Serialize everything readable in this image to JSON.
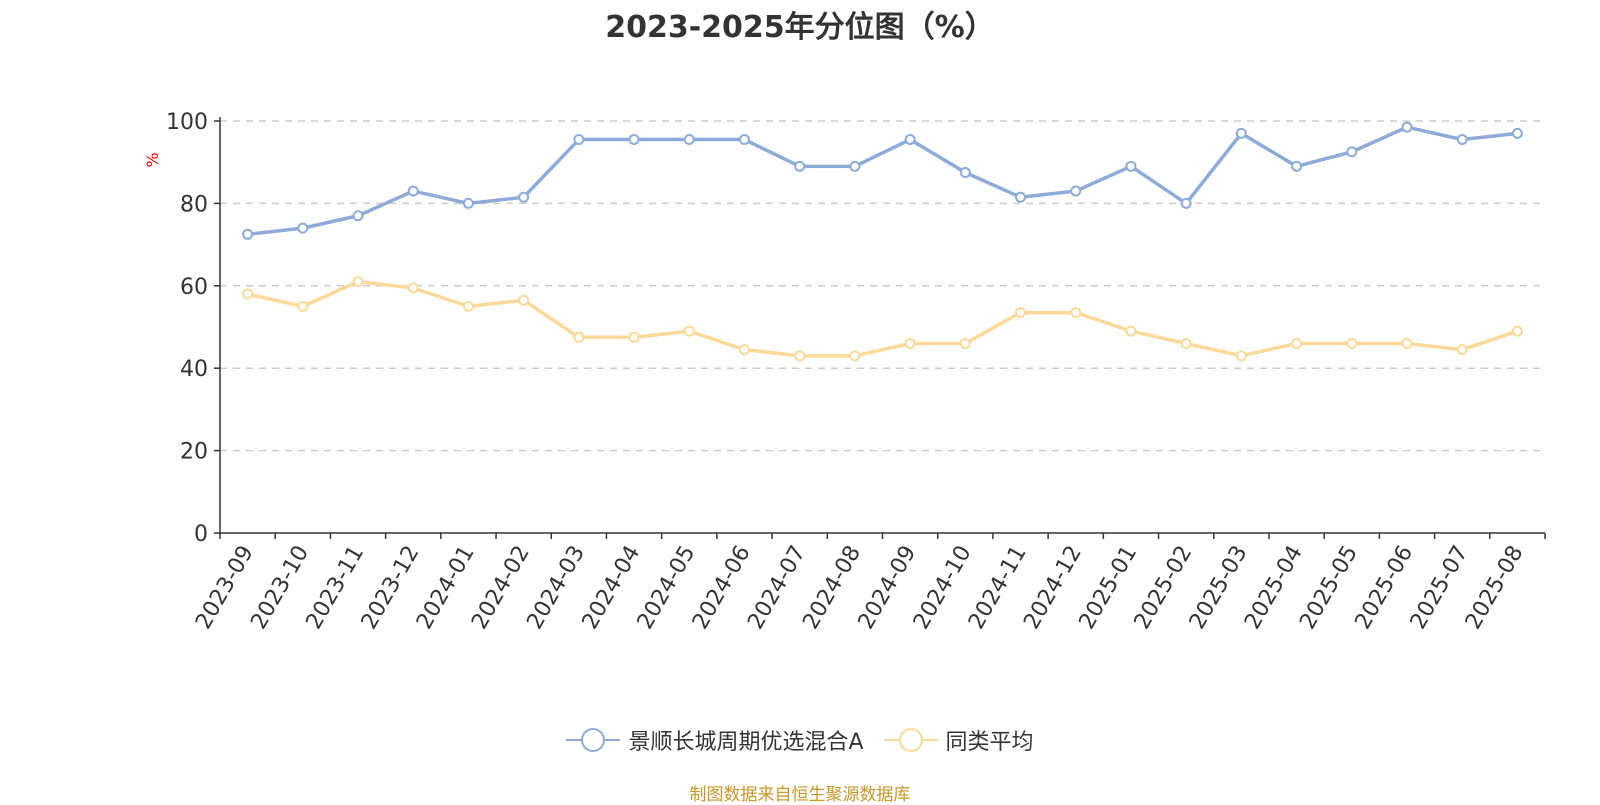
{
  "colors": {
    "series_1": "#8eabd8",
    "series_2": "#fad99a",
    "axis": "#333333",
    "grid": "#cccccc",
    "ylabel": "#ff0000",
    "source": "#c8962a"
  },
  "source_note": "制图数据来自恒生聚源数据库",
  "chart_data": {
    "type": "line",
    "title": "2023-2025年分位图（%）",
    "xlabel": "",
    "ylabel": "%",
    "ylim": [
      0,
      100
    ],
    "yticks": [
      0,
      20,
      40,
      60,
      80,
      100
    ],
    "grid": true,
    "legend_position": "bottom-center",
    "categories": [
      "2023-09",
      "2023-10",
      "2023-11",
      "2023-12",
      "2024-01",
      "2024-02",
      "2024-03",
      "2024-04",
      "2024-05",
      "2024-06",
      "2024-07",
      "2024-08",
      "2024-09",
      "2024-10",
      "2024-11",
      "2024-12",
      "2025-01",
      "2025-02",
      "2025-03",
      "2025-04",
      "2025-05",
      "2025-06",
      "2025-07",
      "2025-08"
    ],
    "series": [
      {
        "name": "景顺长城周期优选混合A",
        "values": [
          72.5,
          74,
          77,
          83,
          80,
          81.5,
          95.5,
          95.5,
          95.5,
          95.5,
          89,
          89,
          95.5,
          87.5,
          81.5,
          83,
          89,
          80,
          97,
          89,
          92.5,
          98.5,
          95.5,
          97
        ]
      },
      {
        "name": "同类平均",
        "values": [
          58,
          55,
          61,
          59.5,
          55,
          56.5,
          47.5,
          47.5,
          49,
          44.5,
          43,
          43,
          46,
          46,
          53.5,
          53.5,
          49,
          46,
          43,
          46,
          46,
          46,
          44.5,
          49
        ]
      }
    ]
  }
}
